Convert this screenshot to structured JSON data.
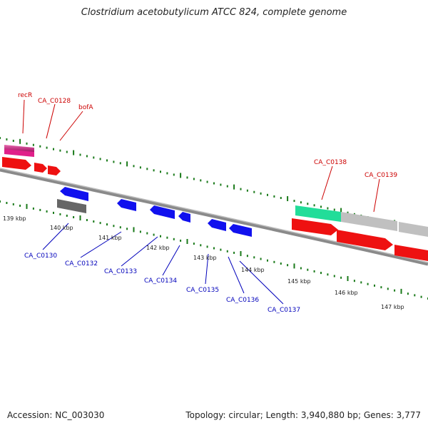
{
  "title": "Clostridium acetobutylicum ATCC 824, complete genome",
  "footer": {
    "accession": "Accession: NC_003030",
    "stats": "Topology: circular; Length: 3,940,880 bp; Genes: 3,777"
  },
  "colors": {
    "tick": "#1a7a1a",
    "backbone": "#8a8a8a",
    "red_gene": "#ee1111",
    "blue_gene": "#1111ee",
    "magenta_gene": "#e0208a",
    "green_gene": "#22dd99",
    "gray_gene": "#c0c0c0",
    "dark_gene": "#666666",
    "red_label": "#cc0000",
    "blue_label": "#0000bb"
  },
  "kbp_labels": [
    "139 kbp",
    "140 kbp",
    "141 kbp",
    "142 kbp",
    "143 kbp",
    "144 kbp",
    "145 kbp",
    "146 kbp",
    "147 kbp"
  ],
  "gene_labels": {
    "red": [
      "recR",
      "CA_C0128",
      "bofA",
      "CA_C0138",
      "CA_C0139"
    ],
    "blue": [
      "CA_C0130",
      "CA_C0132",
      "CA_C0133",
      "CA_C0134",
      "CA_C0135",
      "CA_C0136",
      "CA_C0137"
    ]
  }
}
